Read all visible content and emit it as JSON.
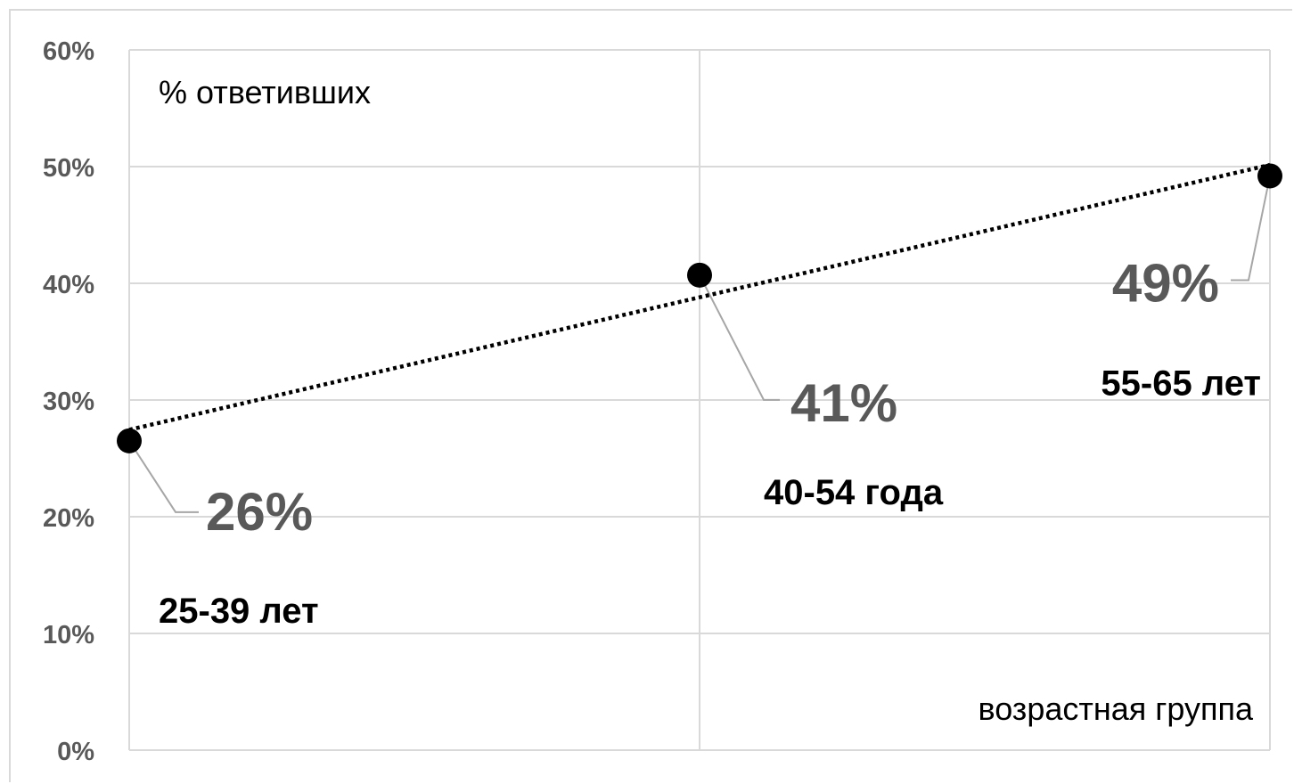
{
  "chart_data": {
    "type": "scatter",
    "title": "",
    "ylabel": "% ответивших",
    "xlabel": "возрастная группа",
    "ylim": [
      0,
      60
    ],
    "y_ticks": [
      "0%",
      "10%",
      "20%",
      "30%",
      "40%",
      "50%",
      "60%"
    ],
    "grid": true,
    "trendline": "linear (dotted)",
    "points": [
      {
        "category": "25-39 лет",
        "value": 26.5,
        "label": "26%"
      },
      {
        "category": "40-54 года",
        "value": 40.7,
        "label": "41%"
      },
      {
        "category": "55-65 лет",
        "value": 49.2,
        "label": "49%"
      }
    ],
    "colors": {
      "marker": "#000000",
      "gridline": "#d9d9d9",
      "leader_line": "#a6a6a6",
      "value_label": "#595959",
      "tick_label": "#595959"
    }
  }
}
